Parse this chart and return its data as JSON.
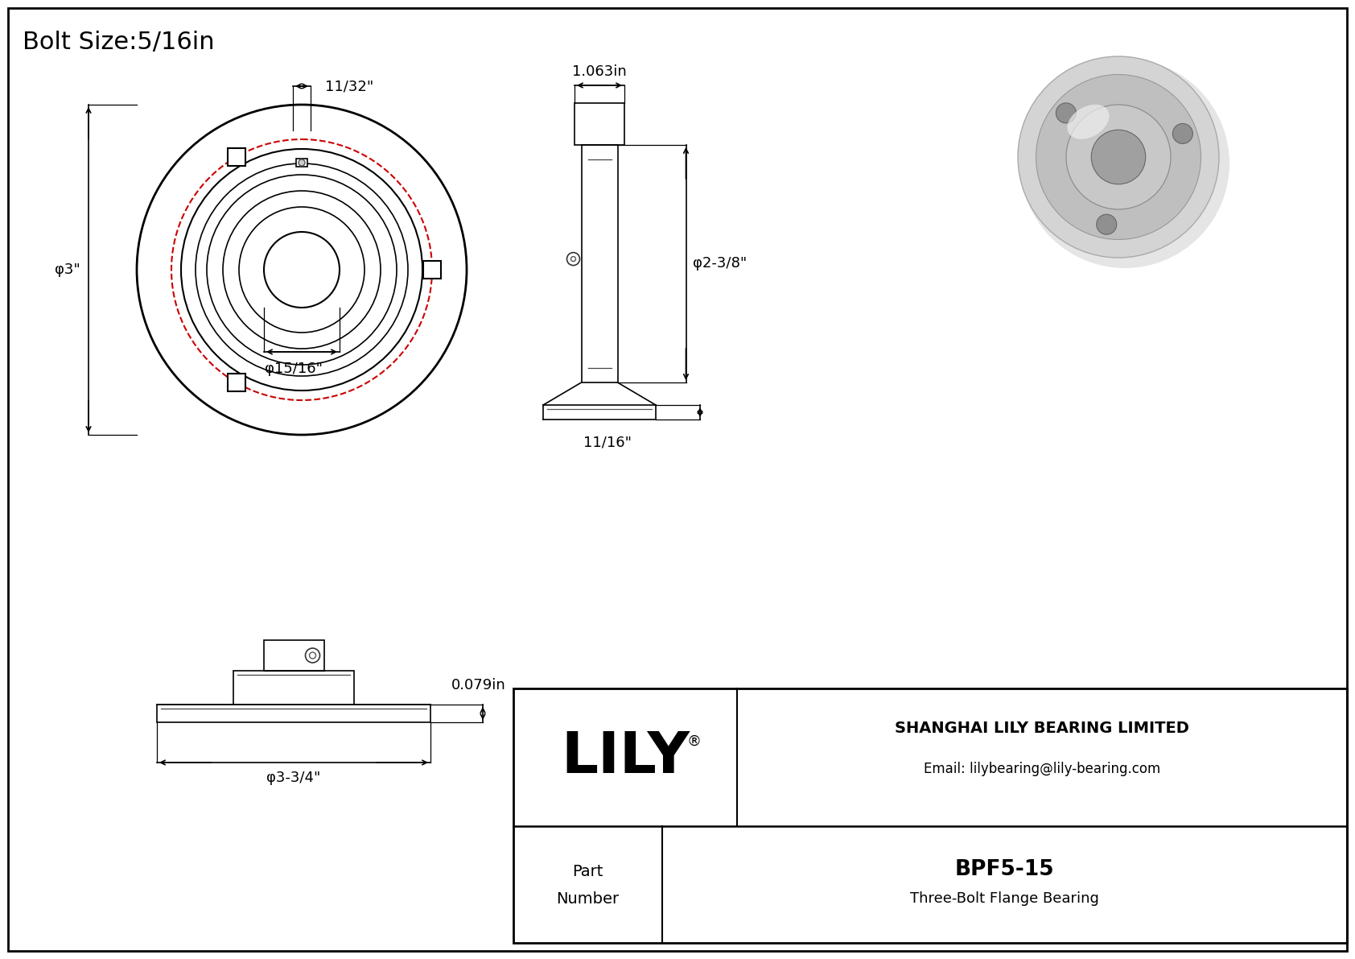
{
  "title": "Bolt Size:5/16in",
  "bg_color": "#ffffff",
  "line_color": "#000000",
  "red_circle_color": "#cc0000",
  "company_name": "SHANGHAI LILY BEARING LIMITED",
  "company_email": "Email: lilybearing@lily-bearing.com",
  "part_number": "BPF5-15",
  "part_desc": "Three-Bolt Flange Bearing",
  "dim_bolt_hole": "11/32\"",
  "dim_od": "φ3\"",
  "dim_bore": "φ15/16\"",
  "dim_side_width": "1.063in",
  "dim_side_dia": "φ2-3/8\"",
  "dim_side_base": "11/16\"",
  "dim_bottom_length": "φ3-3/4\"",
  "dim_bottom_height": "0.079in"
}
